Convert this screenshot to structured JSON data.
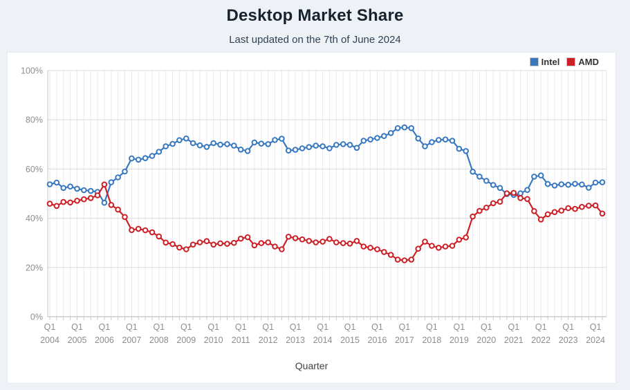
{
  "page": {
    "title": "Desktop Market Share",
    "subtitle": "Last updated on the 7th of June 2024"
  },
  "legend": [
    {
      "label": "Intel",
      "color": "#3778bf"
    },
    {
      "label": "AMD",
      "color": "#cb2026"
    }
  ],
  "chart_data": {
    "type": "line",
    "title": "Desktop Market Share",
    "subtitle": "Last updated on the 7th of June 2024",
    "xlabel": "Quarter",
    "ylabel": "",
    "ylim": [
      0,
      100
    ],
    "grid": true,
    "legend_position": "top-right",
    "marker": "open-circle",
    "y_ticks": [
      "0%",
      "20%",
      "40%",
      "60%",
      "80%",
      "100%"
    ],
    "x_tick_quarter_label": "Q1",
    "x_tick_years": [
      "2004",
      "2005",
      "2006",
      "2007",
      "2008",
      "2009",
      "2010",
      "2011",
      "2012",
      "2013",
      "2014",
      "2015",
      "2016",
      "2017",
      "2018",
      "2019",
      "2020",
      "2021",
      "2022",
      "2023",
      "2024"
    ],
    "quarters_start": "2004 Q1",
    "quarters_end": "2024 Q2",
    "series": [
      {
        "name": "Intel",
        "color": "#3778bf",
        "values": [
          53.8,
          54.5,
          52.3,
          52.9,
          52.0,
          51.4,
          51.1,
          50.7,
          46.3,
          54.6,
          56.6,
          59.0,
          64.3,
          63.8,
          64.4,
          65.3,
          67.0,
          69.2,
          70.2,
          71.7,
          72.4,
          70.5,
          69.6,
          69.0,
          70.5,
          69.9,
          70.1,
          69.5,
          67.9,
          67.3,
          70.8,
          70.3,
          70.1,
          71.8,
          72.3,
          67.5,
          67.8,
          68.4,
          68.9,
          69.5,
          69.2,
          68.4,
          69.8,
          70.1,
          69.8,
          68.6,
          71.5,
          72.0,
          72.6,
          73.4,
          74.6,
          76.6,
          76.9,
          76.6,
          72.4,
          69.2,
          70.9,
          71.8,
          72.0,
          71.5,
          68.2,
          67.3,
          58.9,
          56.9,
          55.2,
          53.5,
          52.3,
          49.8,
          49.5,
          50.1,
          51.5,
          56.9,
          57.4,
          53.9,
          53.3,
          53.8,
          53.6,
          54.0,
          53.7,
          52.4,
          54.5,
          54.6
        ]
      },
      {
        "name": "AMD",
        "color": "#cb2026",
        "values": [
          45.9,
          45.0,
          46.6,
          46.4,
          47.1,
          47.7,
          48.2,
          49.3,
          53.7,
          45.4,
          43.5,
          40.5,
          35.2,
          35.7,
          35.1,
          34.3,
          32.6,
          30.1,
          29.5,
          28.1,
          27.4,
          29.3,
          30.2,
          30.7,
          29.3,
          29.8,
          29.6,
          30.0,
          31.7,
          32.3,
          29.0,
          29.9,
          30.2,
          28.5,
          27.4,
          32.5,
          31.9,
          31.4,
          30.8,
          30.2,
          30.5,
          31.6,
          30.2,
          29.9,
          29.7,
          30.8,
          28.5,
          28.0,
          27.4,
          26.3,
          25.1,
          23.2,
          22.9,
          23.2,
          27.6,
          30.5,
          28.8,
          28.0,
          28.5,
          28.8,
          31.3,
          32.2,
          40.7,
          43.0,
          44.3,
          46.1,
          46.7,
          50.1,
          50.3,
          48.2,
          47.8,
          42.9,
          39.5,
          41.6,
          42.5,
          43.1,
          44.1,
          43.8,
          44.6,
          45.1,
          45.2,
          41.9
        ]
      }
    ]
  }
}
